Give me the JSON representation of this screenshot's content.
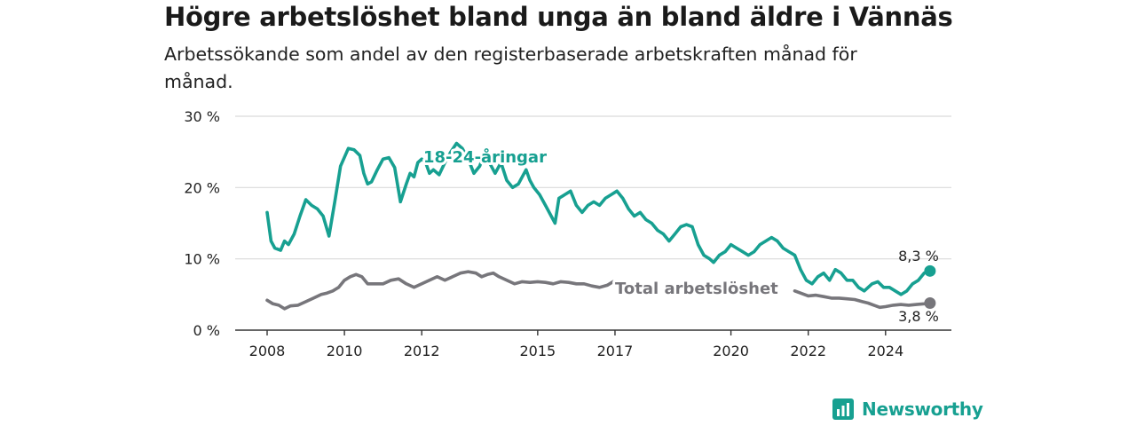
{
  "title": "Högre arbetslöshet bland unga än bland äldre i Vännäs",
  "subtitle": "Arbetssökande som andel av den registerbaserade arbetskraften månad för månad.",
  "brand": {
    "name": "Newsworthy",
    "color": "#17a091",
    "icon": "chart-bars-icon"
  },
  "colors": {
    "young": "#17a091",
    "total": "#77767b",
    "grid": "#d9d9d9",
    "axis": "#333333"
  },
  "chart_data": {
    "type": "line",
    "title": "Högre arbetslöshet bland unga än bland äldre i Vännäs",
    "ylim": [
      0,
      30
    ],
    "xlim": [
      2008,
      2025.5
    ],
    "yticks": [
      0,
      10,
      20,
      30
    ],
    "ytick_labels": [
      "0 %",
      "10 %",
      "20 %",
      "30 %"
    ],
    "xticks": [
      2008,
      2010,
      2012,
      2015,
      2017,
      2020,
      2022,
      2024
    ],
    "xtick_labels": [
      "2008",
      "2010",
      "2012",
      "2015",
      "2017",
      "2020",
      "2022",
      "2024"
    ],
    "grid": true,
    "legend": "inline",
    "series": [
      {
        "name": "18-24-åringar",
        "end_label": "8,3 %",
        "x": [
          2008.0,
          2008.1,
          2008.2,
          2008.35,
          2008.45,
          2008.55,
          2008.7,
          2008.85,
          2009.0,
          2009.15,
          2009.3,
          2009.45,
          2009.6,
          2009.75,
          2009.9,
          2010.1,
          2010.25,
          2010.4,
          2010.5,
          2010.6,
          2010.7,
          2010.85,
          2011.0,
          2011.15,
          2011.3,
          2011.45,
          2011.6,
          2011.7,
          2011.8,
          2011.9,
          2012.0,
          2012.1,
          2012.2,
          2012.3,
          2012.45,
          2012.6,
          2012.75,
          2012.9,
          2013.05,
          2013.2,
          2013.35,
          2013.5,
          2013.6,
          2013.75,
          2013.9,
          2014.05,
          2014.2,
          2014.35,
          2014.5,
          2014.6,
          2014.7,
          2014.8,
          2014.9,
          2015.05,
          2015.2,
          2015.35,
          2015.45,
          2015.55,
          2015.7,
          2015.85,
          2016.0,
          2016.15,
          2016.3,
          2016.45,
          2016.6,
          2016.75,
          2016.9,
          2017.05,
          2017.2,
          2017.35,
          2017.5,
          2017.65,
          2017.8,
          2017.95,
          2018.1,
          2018.25,
          2018.4,
          2018.55,
          2018.7,
          2018.85,
          2019.0,
          2019.15,
          2019.3,
          2019.45,
          2019.55,
          2019.7,
          2019.85,
          2020.0,
          2020.15,
          2020.3,
          2020.45,
          2020.6,
          2020.75,
          2020.9,
          2021.05,
          2021.2,
          2021.35,
          2021.5,
          2021.65,
          2021.8,
          2021.95,
          2022.1,
          2022.25,
          2022.4,
          2022.55,
          2022.7,
          2022.85,
          2023.0,
          2023.15,
          2023.3,
          2023.45,
          2023.55,
          2023.65,
          2023.8,
          2023.95,
          2024.1,
          2024.25,
          2024.4,
          2024.55,
          2024.7,
          2024.85,
          2025.0,
          2025.15
        ],
        "values": [
          16.5,
          12.5,
          11.5,
          11.2,
          12.5,
          12.0,
          13.5,
          16.0,
          18.3,
          17.5,
          17.0,
          16.0,
          13.2,
          18.0,
          23.0,
          25.5,
          25.3,
          24.5,
          22.0,
          20.5,
          20.8,
          22.5,
          24.0,
          24.2,
          22.8,
          18.0,
          20.5,
          22.0,
          21.5,
          23.5,
          24.0,
          23.5,
          22.0,
          22.5,
          21.8,
          23.5,
          25.0,
          26.2,
          25.5,
          24.0,
          22.0,
          23.0,
          24.5,
          23.5,
          22.0,
          23.5,
          21.0,
          20.0,
          20.5,
          21.5,
          22.5,
          21.0,
          20.0,
          19.0,
          17.5,
          16.0,
          15.0,
          18.5,
          19.0,
          19.5,
          17.5,
          16.5,
          17.5,
          18.0,
          17.5,
          18.5,
          19.0,
          19.5,
          18.5,
          17.0,
          16.0,
          16.5,
          15.5,
          15.0,
          14.0,
          13.5,
          12.5,
          13.5,
          14.5,
          14.8,
          14.5,
          12.0,
          10.5,
          10.0,
          9.5,
          10.5,
          11.0,
          12.0,
          11.5,
          11.0,
          10.5,
          11.0,
          12.0,
          12.5,
          13.0,
          12.5,
          11.5,
          11.0,
          10.5,
          8.5,
          7.0,
          6.5,
          7.5,
          8.0,
          7.0,
          8.5,
          8.0,
          7.0,
          7.0,
          6.0,
          5.5,
          6.0,
          6.5,
          6.8,
          6.0,
          6.0,
          5.5,
          5.0,
          5.5,
          6.5,
          7.0,
          8.0,
          8.3
        ]
      },
      {
        "name": "Total arbetslöshet",
        "end_label": "3,8 %",
        "x": [
          2008.0,
          2008.15,
          2008.3,
          2008.45,
          2008.6,
          2008.8,
          2009.0,
          2009.2,
          2009.4,
          2009.55,
          2009.7,
          2009.85,
          2010.0,
          2010.15,
          2010.3,
          2010.45,
          2010.6,
          2010.8,
          2011.0,
          2011.2,
          2011.4,
          2011.6,
          2011.8,
          2012.0,
          2012.2,
          2012.4,
          2012.6,
          2012.8,
          2013.0,
          2013.2,
          2013.4,
          2013.55,
          2013.7,
          2013.85,
          2014.0,
          2014.2,
          2014.4,
          2014.6,
          2014.8,
          2015.0,
          2015.2,
          2015.4,
          2015.6,
          2015.8,
          2016.0,
          2016.2,
          2016.4,
          2016.6,
          2016.8,
          2016.95,
          2021.65,
          2021.8,
          2022.0,
          2022.2,
          2022.4,
          2022.6,
          2022.8,
          2023.0,
          2023.2,
          2023.4,
          2023.55,
          2023.7,
          2023.85,
          2024.0,
          2024.2,
          2024.4,
          2024.6,
          2024.8,
          2025.0,
          2025.15
        ],
        "values": [
          4.2,
          3.7,
          3.5,
          3.0,
          3.4,
          3.5,
          4.0,
          4.5,
          5.0,
          5.2,
          5.5,
          6.0,
          7.0,
          7.5,
          7.8,
          7.5,
          6.5,
          6.5,
          6.5,
          7.0,
          7.2,
          6.5,
          6.0,
          6.5,
          7.0,
          7.5,
          7.0,
          7.5,
          8.0,
          8.2,
          8.0,
          7.5,
          7.8,
          8.0,
          7.5,
          7.0,
          6.5,
          6.8,
          6.7,
          6.8,
          6.7,
          6.5,
          6.8,
          6.7,
          6.5,
          6.5,
          6.2,
          6.0,
          6.3,
          6.8,
          5.5,
          5.2,
          4.8,
          4.9,
          4.7,
          4.5,
          4.5,
          4.4,
          4.3,
          4.0,
          3.8,
          3.5,
          3.2,
          3.3,
          3.5,
          3.6,
          3.5,
          3.6,
          3.7,
          3.8
        ]
      }
    ]
  }
}
